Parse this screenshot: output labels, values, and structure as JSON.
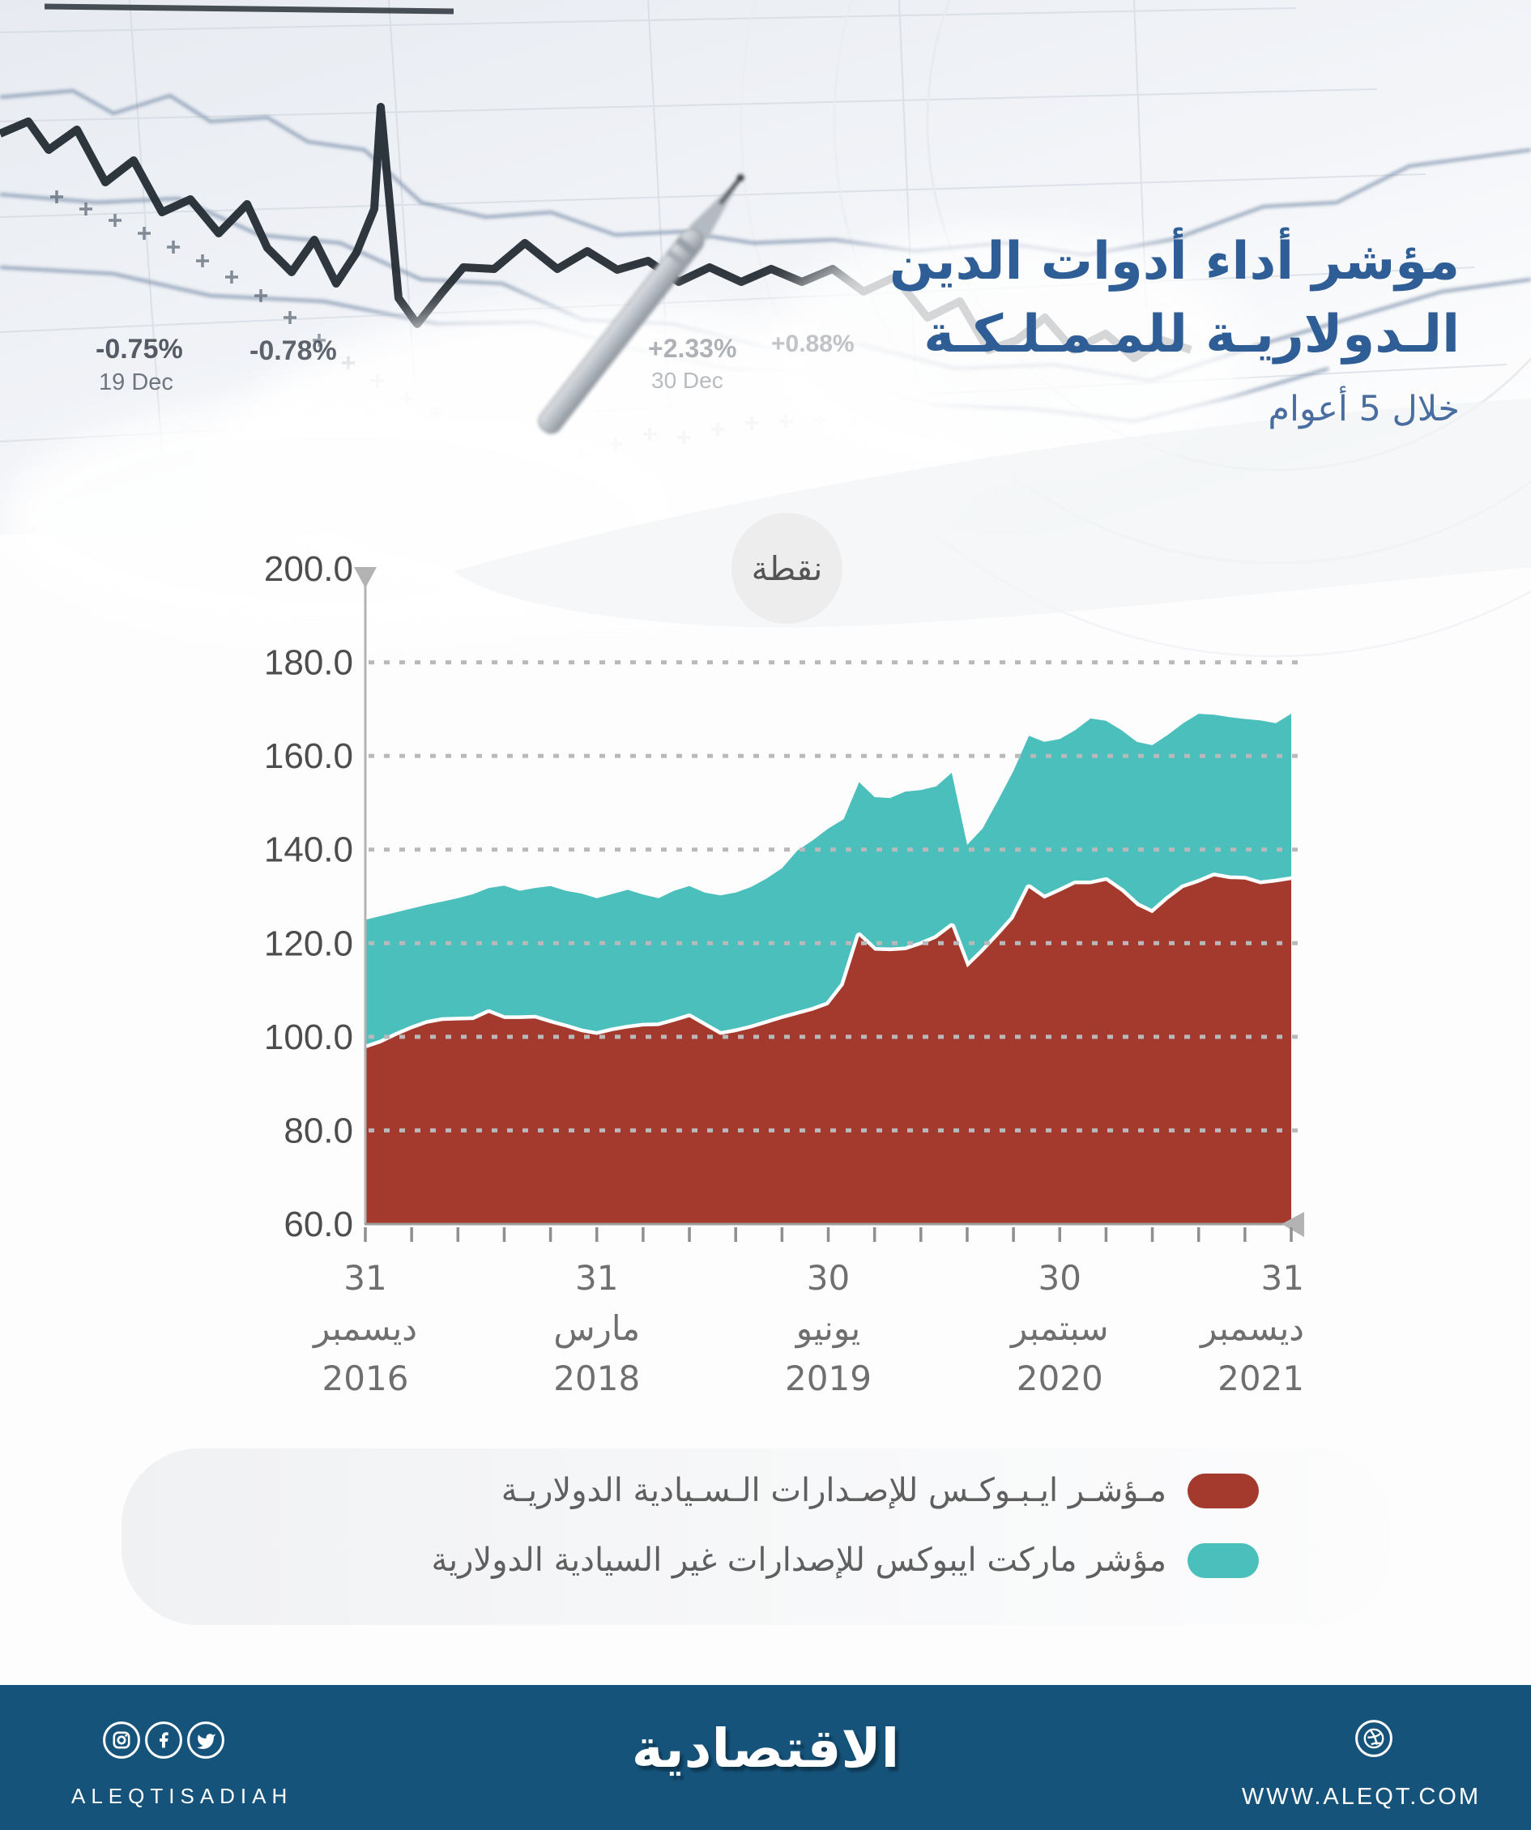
{
  "title": {
    "line1": "مؤشر أداء أدوات الدين",
    "line2": "الـدولاريـة للمـمـلـكـة",
    "subtitle": "خلال 5 أعوام"
  },
  "photo": {
    "label1": "-0.75%",
    "label1_date": "19 Dec",
    "label2": "-0.78%",
    "label3": "+2.33%",
    "label3_date": "30 Dec",
    "label4": "+0.88%"
  },
  "chart_data": {
    "type": "area",
    "unit_bubble": "نقطة",
    "ylim": [
      60,
      200
    ],
    "grid": "dotted horizontal",
    "legend_position": "bottom-right panel",
    "yticks": [
      {
        "label": "200.0",
        "value": 200,
        "grid": false
      },
      {
        "label": "180.0",
        "value": 180,
        "grid": true
      },
      {
        "label": "160.0",
        "value": 160,
        "grid": true
      },
      {
        "label": "140.0",
        "value": 140,
        "grid": true
      },
      {
        "label": "120.0",
        "value": 120,
        "grid": true
      },
      {
        "label": "100.0",
        "value": 100,
        "grid": true
      },
      {
        "label": "80.0",
        "value": 80,
        "grid": true
      },
      {
        "label": "60.0",
        "value": 60,
        "grid": false
      }
    ],
    "xticks": [
      {
        "pos": 0,
        "lines": [
          "31",
          "ديسمبر",
          "2016"
        ],
        "align": "middle"
      },
      {
        "pos": 15,
        "lines": [
          "31",
          "مارس",
          "2018"
        ],
        "align": "middle"
      },
      {
        "pos": 30,
        "lines": [
          "30",
          "يونيو",
          "2019"
        ],
        "align": "middle"
      },
      {
        "pos": 45,
        "lines": [
          "30",
          "سبتمبر",
          "2020"
        ],
        "align": "middle"
      },
      {
        "pos": 60,
        "lines": [
          "31",
          "ديسمبر",
          "2021"
        ],
        "align": "end"
      }
    ],
    "minor_tick_every_months": 3,
    "series": [
      {
        "name": "مـؤشـر ايـبـوكـس للإصـدارات الـسـيادية الدولاريـة",
        "color": "#a43a2e",
        "values": [
          97.5,
          98.6,
          100.2,
          101.6,
          102.8,
          103.4,
          103.5,
          103.6,
          105.1,
          103.8,
          103.8,
          103.9,
          102.9,
          102.0,
          101.0,
          100.4,
          101.2,
          101.8,
          102.2,
          102.3,
          103.2,
          104.2,
          102.3,
          100.4,
          101.0,
          101.8,
          102.8,
          103.8,
          104.7,
          105.6,
          106.8,
          111.0,
          121.5,
          118.4,
          118.3,
          118.5,
          119.6,
          121.0,
          123.5,
          114.8,
          118.0,
          121.5,
          125.2,
          131.8,
          129.5,
          131.0,
          132.6,
          132.6,
          133.3,
          131.0,
          128.0,
          126.4,
          129.3,
          131.8,
          132.9,
          134.3,
          133.7,
          133.6,
          132.6,
          133.0,
          133.5
        ]
      },
      {
        "name": "مؤشر ماركت ايبوكس للإصدارات غير السيادية الدولارية",
        "color": "#4bbfbc",
        "values": [
          125.0,
          125.8,
          126.6,
          127.4,
          128.2,
          128.9,
          129.6,
          130.5,
          131.8,
          132.3,
          131.2,
          131.8,
          132.2,
          131.2,
          130.6,
          129.6,
          130.5,
          131.4,
          130.4,
          129.6,
          131.2,
          132.2,
          130.8,
          130.2,
          130.8,
          132.0,
          133.8,
          136.0,
          139.8,
          142.0,
          144.5,
          146.5,
          154.4,
          151.2,
          151.0,
          152.4,
          152.7,
          153.5,
          156.4,
          141.0,
          144.5,
          150.5,
          156.8,
          164.3,
          163.0,
          163.6,
          165.5,
          168.0,
          167.5,
          165.5,
          163.0,
          162.3,
          164.5,
          167.0,
          169.0,
          168.8,
          168.3,
          167.9,
          167.6,
          167.0,
          169.0
        ]
      }
    ]
  },
  "footer": {
    "handle": "ALEQTISADIAH",
    "logo": "الاقتصادية",
    "url": "WWW.ALEQT.COM"
  }
}
